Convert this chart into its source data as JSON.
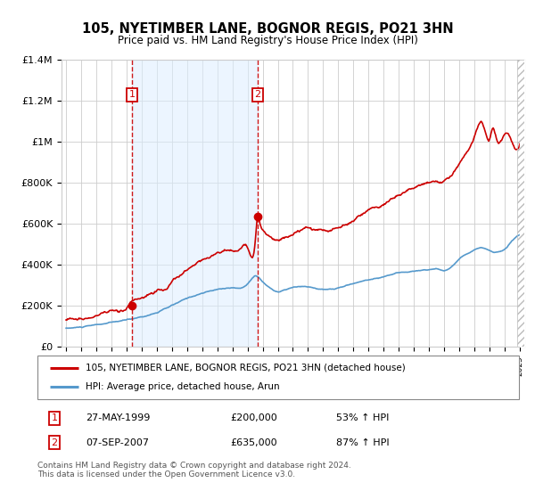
{
  "title": "105, NYETIMBER LANE, BOGNOR REGIS, PO21 3HN",
  "subtitle": "Price paid vs. HM Land Registry's House Price Index (HPI)",
  "legend_line1": "105, NYETIMBER LANE, BOGNOR REGIS, PO21 3HN (detached house)",
  "legend_line2": "HPI: Average price, detached house, Arun",
  "transaction1_label": "1",
  "transaction1_date": "27-MAY-1999",
  "transaction1_price": "£200,000",
  "transaction1_hpi": "53% ↑ HPI",
  "transaction2_label": "2",
  "transaction2_date": "07-SEP-2007",
  "transaction2_price": "£635,000",
  "transaction2_hpi": "87% ↑ HPI",
  "footer": "Contains HM Land Registry data © Crown copyright and database right 2024.\nThis data is licensed under the Open Government Licence v3.0.",
  "red_color": "#cc0000",
  "blue_color": "#5599cc",
  "dashed_color": "#cc0000",
  "marker_box_color": "#cc0000",
  "grid_color": "#cccccc",
  "shade_color": "#ddeeff",
  "ylim": [
    0,
    1400000
  ],
  "yticks": [
    0,
    200000,
    400000,
    600000,
    800000,
    1000000,
    1200000,
    1400000
  ],
  "ytick_labels": [
    "£0",
    "£200K",
    "£400K",
    "£600K",
    "£800K",
    "£1M",
    "£1.2M",
    "£1.4M"
  ],
  "transaction1_x": 1999.37,
  "transaction2_x": 2007.67,
  "transaction1_y": 200000,
  "transaction2_y": 635000,
  "xlim_start": 1994.7,
  "xlim_end": 2025.3
}
